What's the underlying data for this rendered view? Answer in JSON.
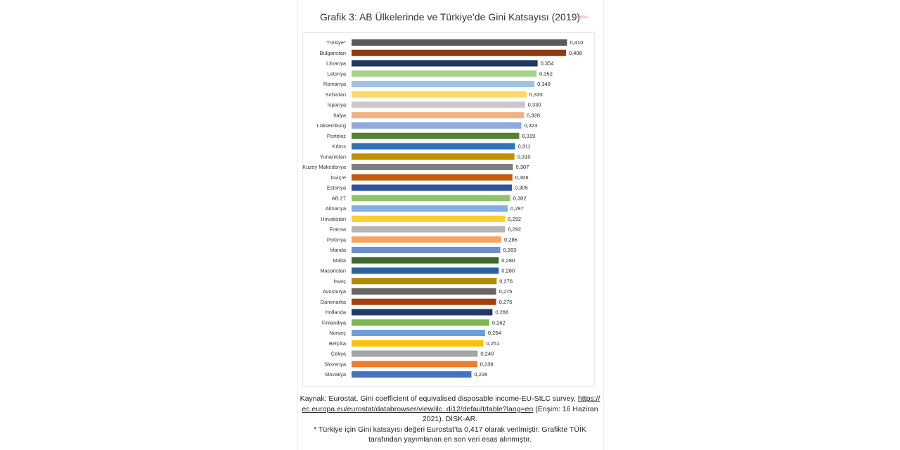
{
  "title": "Grafik 3: AB Ülkelerinde ve Türkiye’de Gini Katsayısı (2019)",
  "watermark": "sendika",
  "source": {
    "prefix": "Kaynak: Eurostat, Gini coefficient of equivalised disposable income-EU-SILC survey,",
    "link": "https:// ec.europa.eu/eurostat/databrowser/view/ilc_di12/default/table?lang=en",
    "suffix": "(Erişim: 16 Haziran 2021). DİSK-AR.",
    "note": "* Türkiye için Gini katsayısı değeri Eurostat’ta 0,417 olarak verilmiştir. Grafikte TÜİK tarafından yayımlanan en son veri esas alınmıştır."
  },
  "chart_data": {
    "type": "bar",
    "orientation": "horizontal",
    "title": "Grafik 3: AB Ülkelerinde ve Türkiye’de Gini Katsayısı (2019)",
    "categories": [
      "Türkiye*",
      "Bulgaristan",
      "Litvanya",
      "Letonya",
      "Romanya",
      "Sırbistan",
      "İspanya",
      "İtalya",
      "Lüksemburg",
      "Portekiz",
      "Kıbrıs",
      "Yunanistan",
      "Kuzey Makedonya",
      "İsviçre",
      "Estonya",
      "AB 27",
      "Almanya",
      "Hırvatistan",
      "Fransa",
      "Polonya",
      "İrlanda",
      "Malta",
      "Macaristan",
      "İsveç",
      "Avusturya",
      "Danimarka",
      "Hollanda",
      "Finlandiya",
      "Norveç",
      "Belçika",
      "Çekya",
      "Slovenya",
      "Slovakya"
    ],
    "values": [
      0.41,
      0.408,
      0.354,
      0.352,
      0.348,
      0.333,
      0.33,
      0.328,
      0.323,
      0.319,
      0.311,
      0.31,
      0.307,
      0.306,
      0.305,
      0.302,
      0.297,
      0.292,
      0.292,
      0.285,
      0.283,
      0.28,
      0.28,
      0.276,
      0.275,
      0.275,
      0.268,
      0.262,
      0.254,
      0.251,
      0.24,
      0.239,
      0.228
    ],
    "value_labels": [
      "0,410",
      "0,408",
      "0,354",
      "0,352",
      "0,348",
      "0,333",
      "0,330",
      "0,328",
      "0,323",
      "0,319",
      "0,311",
      "0,310",
      "0,307",
      "0,306",
      "0,305",
      "0,302",
      "0,297",
      "0,292",
      "0,292",
      "0,285",
      "0,283",
      "0,280",
      "0,280",
      "0,276",
      "0,275",
      "0,275",
      "0,268",
      "0,262",
      "0,254",
      "0,251",
      "0,240",
      "0,239",
      "0,228"
    ],
    "colors": [
      "#595959",
      "#8c3c12",
      "#1f3864",
      "#a8d08d",
      "#9dc3e6",
      "#ffd966",
      "#c9c9c9",
      "#f4b183",
      "#8eaadb",
      "#548235",
      "#2e75b6",
      "#bf9000",
      "#7f7f7f",
      "#c55a11",
      "#2f5597",
      "#8fc36a",
      "#7fb0e0",
      "#ffcc33",
      "#b4b4b4",
      "#f4a460",
      "#6d8fd0",
      "#3b6b27",
      "#2a64a0",
      "#b08a00",
      "#666666",
      "#a5400e",
      "#203a6a",
      "#7bb84f",
      "#6aa0d8",
      "#ffc000",
      "#a5a5a5",
      "#ed7d31",
      "#4472c4"
    ],
    "xlim": [
      0,
      0.42
    ],
    "grid": false,
    "legend": "none",
    "xlabel": "",
    "ylabel": ""
  }
}
